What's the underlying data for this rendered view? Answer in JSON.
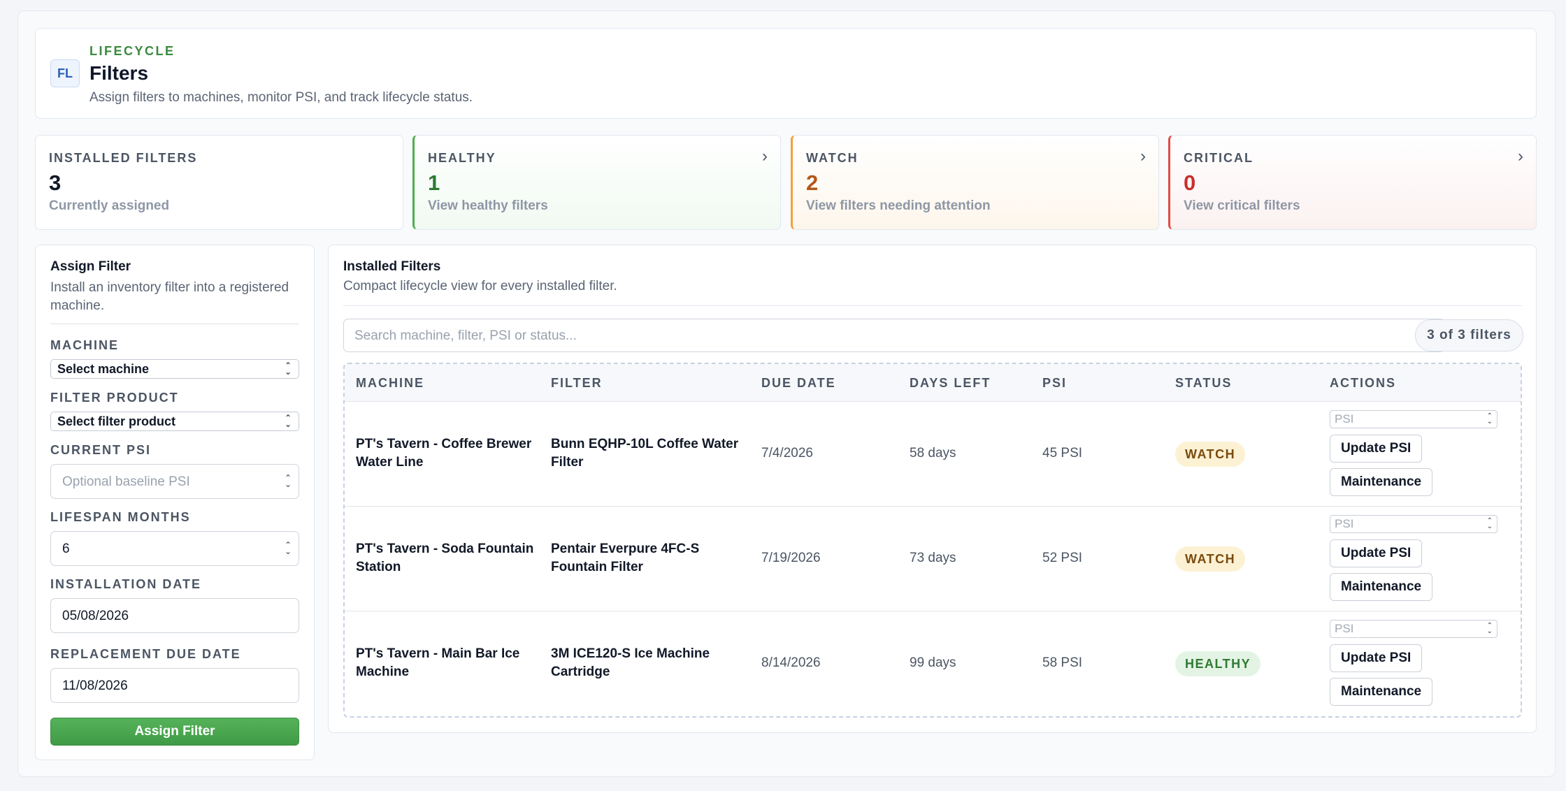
{
  "header": {
    "badge": "FL",
    "eyebrow": "LIFECYCLE",
    "title": "Filters",
    "subtitle": "Assign filters to machines, monitor PSI, and track lifecycle status."
  },
  "stats": {
    "installed": {
      "label": "INSTALLED FILTERS",
      "value": "3",
      "sub": "Currently assigned"
    },
    "healthy": {
      "label": "HEALTHY",
      "value": "1",
      "sub": "View healthy filters",
      "color": "#2f7a33"
    },
    "watch": {
      "label": "WATCH",
      "value": "2",
      "sub": "View filters needing attention",
      "color": "#b3581b"
    },
    "critical": {
      "label": "CRITICAL",
      "value": "0",
      "sub": "View critical filters",
      "color": "#c9302c"
    }
  },
  "assign": {
    "title": "Assign Filter",
    "description": "Install an inventory filter into a registered machine.",
    "machine_label": "MACHINE",
    "machine_value": "Select machine",
    "filter_label": "FILTER PRODUCT",
    "filter_value": "Select filter product",
    "psi_label": "CURRENT PSI",
    "psi_placeholder": "Optional baseline PSI",
    "lifespan_label": "LIFESPAN MONTHS",
    "lifespan_value": "6",
    "install_label": "INSTALLATION DATE",
    "install_value": "05/08/2026",
    "due_label": "REPLACEMENT DUE DATE",
    "due_value": "11/08/2026",
    "submit": "Assign Filter"
  },
  "installed": {
    "title": "Installed Filters",
    "description": "Compact lifecycle view for every installed filter.",
    "search_placeholder": "Search machine, filter, PSI or status...",
    "count": "3 of 3 filters",
    "columns": [
      "MACHINE",
      "FILTER",
      "DUE DATE",
      "DAYS LEFT",
      "PSI",
      "STATUS",
      "ACTIONS"
    ],
    "rows": [
      {
        "machine": "PT's Tavern - Coffee Brewer Water Line",
        "filter": "Bunn EQHP-10L Coffee Water Filter",
        "due": "7/4/2026",
        "days": "58 days",
        "psi": "45 PSI",
        "status": "WATCH"
      },
      {
        "machine": "PT's Tavern - Soda Fountain Station",
        "filter": "Pentair Everpure 4FC-S Fountain Filter",
        "due": "7/19/2026",
        "days": "73 days",
        "psi": "52 PSI",
        "status": "WATCH"
      },
      {
        "machine": "PT's Tavern - Main Bar Ice Machine",
        "filter": "3M ICE120-S Ice Machine Cartridge",
        "due": "8/14/2026",
        "days": "99 days",
        "psi": "58 PSI",
        "status": "HEALTHY"
      }
    ],
    "actions": {
      "psi_placeholder": "PSI",
      "update": "Update PSI",
      "maintenance": "Maintenance"
    }
  }
}
